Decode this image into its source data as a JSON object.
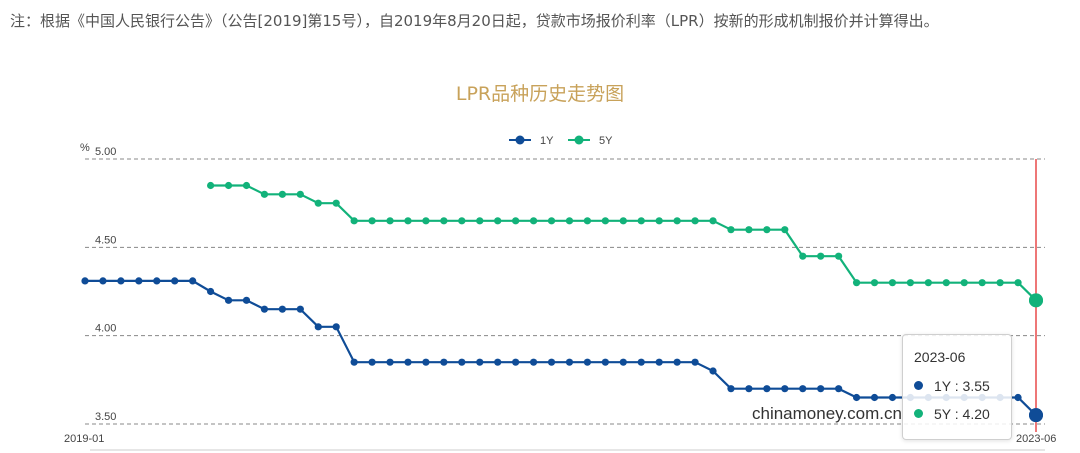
{
  "note": "注：根据《中国人民银行公告》（公告[2019]第15号），自2019年8月20日起，贷款市场报价利率（LPR）按新的形成机制报价并计算得出。",
  "watermark": "chinamoney.com.cn",
  "colors": {
    "series_1y": "#0f4c97",
    "series_5y": "#12b27a",
    "title": "#c8a25a",
    "cursor": "#e84a4a",
    "grid": "#888888"
  },
  "tooltip": {
    "title": "2023-06",
    "rows": [
      {
        "name": "1Y",
        "text": "1Y   : 3.55"
      },
      {
        "name": "5Y",
        "text": "5Y   : 4.20"
      }
    ]
  },
  "chart_data": {
    "type": "line",
    "title": "LPR品种历史走势图",
    "ylabel": "%",
    "ylim": [
      3.5,
      5.0
    ],
    "yticks": [
      "3.50",
      "4.00",
      "4.50",
      "5.00"
    ],
    "x_labels_shown": [
      "2019-01",
      "2023-06"
    ],
    "grid": "horizontal dashed",
    "legend": "top-center",
    "highlight": "2023-06",
    "x": [
      "2019-01",
      "2019-02",
      "2019-03",
      "2019-04",
      "2019-05",
      "2019-06",
      "2019-07",
      "2019-08",
      "2019-09",
      "2019-10",
      "2019-11",
      "2019-12",
      "2020-01",
      "2020-02",
      "2020-03",
      "2020-04",
      "2020-05",
      "2020-06",
      "2020-07",
      "2020-08",
      "2020-09",
      "2020-10",
      "2020-11",
      "2020-12",
      "2021-01",
      "2021-02",
      "2021-03",
      "2021-04",
      "2021-05",
      "2021-06",
      "2021-07",
      "2021-08",
      "2021-09",
      "2021-10",
      "2021-11",
      "2021-12",
      "2022-01",
      "2022-02",
      "2022-03",
      "2022-04",
      "2022-05",
      "2022-06",
      "2022-07",
      "2022-08",
      "2022-09",
      "2022-10",
      "2022-11",
      "2022-12",
      "2023-01",
      "2023-02",
      "2023-03",
      "2023-04",
      "2023-05",
      "2023-06"
    ],
    "series": [
      {
        "name": "1Y",
        "values": [
          4.31,
          4.31,
          4.31,
          4.31,
          4.31,
          4.31,
          4.31,
          4.25,
          4.2,
          4.2,
          4.15,
          4.15,
          4.15,
          4.05,
          4.05,
          3.85,
          3.85,
          3.85,
          3.85,
          3.85,
          3.85,
          3.85,
          3.85,
          3.85,
          3.85,
          3.85,
          3.85,
          3.85,
          3.85,
          3.85,
          3.85,
          3.85,
          3.85,
          3.85,
          3.85,
          3.8,
          3.7,
          3.7,
          3.7,
          3.7,
          3.7,
          3.7,
          3.7,
          3.65,
          3.65,
          3.65,
          3.65,
          3.65,
          3.65,
          3.65,
          3.65,
          3.65,
          3.65,
          3.55
        ]
      },
      {
        "name": "5Y",
        "values": [
          null,
          null,
          null,
          null,
          null,
          null,
          null,
          4.85,
          4.85,
          4.85,
          4.8,
          4.8,
          4.8,
          4.75,
          4.75,
          4.65,
          4.65,
          4.65,
          4.65,
          4.65,
          4.65,
          4.65,
          4.65,
          4.65,
          4.65,
          4.65,
          4.65,
          4.65,
          4.65,
          4.65,
          4.65,
          4.65,
          4.65,
          4.65,
          4.65,
          4.65,
          4.6,
          4.6,
          4.6,
          4.6,
          4.45,
          4.45,
          4.45,
          4.3,
          4.3,
          4.3,
          4.3,
          4.3,
          4.3,
          4.3,
          4.3,
          4.3,
          4.3,
          4.2
        ]
      }
    ]
  }
}
